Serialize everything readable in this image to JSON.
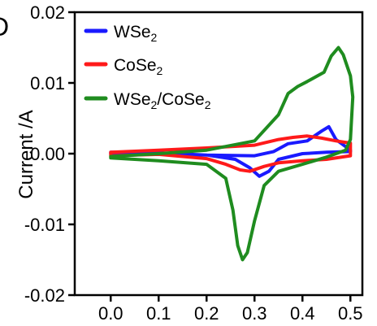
{
  "panel_label": "D",
  "chart_data": {
    "type": "line",
    "xlabel": "",
    "ylabel": "Current /A",
    "xlim": [
      -0.075,
      0.525
    ],
    "ylim": [
      -0.02,
      0.02
    ],
    "x_ticks": [
      "0.0",
      "0.1",
      "0.2",
      "0.3",
      "0.4",
      "0.5"
    ],
    "x_tick_values": [
      0.0,
      0.1,
      0.2,
      0.3,
      0.4,
      0.5
    ],
    "y_ticks": [
      "-0.02",
      "-0.01",
      "0.00",
      "0.01",
      "0.02"
    ],
    "y_tick_values": [
      -0.02,
      -0.01,
      0.0,
      0.01,
      0.02
    ],
    "grid": false,
    "legend_position": "top-left",
    "series": [
      {
        "name": "WSe",
        "name_sub": "2",
        "color": "#1a1aff",
        "x": [
          0.0,
          0.1,
          0.2,
          0.26,
          0.29,
          0.31,
          0.33,
          0.35,
          0.4,
          0.45,
          0.5,
          0.5,
          0.47,
          0.455,
          0.44,
          0.41,
          0.37,
          0.34,
          0.3,
          0.2,
          0.1,
          0.0,
          0.0
        ],
        "y": [
          0.0002,
          0.0001,
          -0.0002,
          -0.0008,
          -0.002,
          -0.0032,
          -0.0025,
          -0.0008,
          0.0,
          0.0002,
          0.0003,
          0.0005,
          0.002,
          0.0038,
          0.0032,
          0.0018,
          0.0014,
          0.0003,
          -0.0003,
          -0.0002,
          -0.0001,
          0.0,
          0.0002
        ]
      },
      {
        "name": "CoSe",
        "name_sub": "2",
        "color": "#ff1a1a",
        "x": [
          0.0,
          0.1,
          0.2,
          0.24,
          0.27,
          0.29,
          0.32,
          0.35,
          0.4,
          0.45,
          0.5,
          0.5,
          0.47,
          0.44,
          0.41,
          0.38,
          0.35,
          0.3,
          0.2,
          0.1,
          0.0,
          0.0
        ],
        "y": [
          -0.0003,
          -0.0001,
          -0.0007,
          -0.0015,
          -0.0023,
          -0.0025,
          -0.0018,
          -0.0013,
          -0.001,
          -0.0008,
          -0.0003,
          0.0015,
          0.0018,
          0.0022,
          0.0025,
          0.0023,
          0.002,
          0.0012,
          0.0008,
          0.0005,
          0.0002,
          -0.0003
        ]
      },
      {
        "name": "WSe",
        "name_sub": "2",
        "name_suffix": "/CoSe",
        "name_suffix_sub": "2",
        "color": "#1f8c1f",
        "x": [
          0.0,
          0.1,
          0.2,
          0.24,
          0.255,
          0.265,
          0.275,
          0.285,
          0.3,
          0.32,
          0.35,
          0.4,
          0.45,
          0.49,
          0.5,
          0.505,
          0.5,
          0.485,
          0.475,
          0.46,
          0.445,
          0.41,
          0.39,
          0.37,
          0.35,
          0.3,
          0.2,
          0.1,
          0.0,
          0.0
        ],
        "y": [
          -0.0006,
          -0.001,
          -0.0015,
          -0.0035,
          -0.008,
          -0.013,
          -0.015,
          -0.014,
          -0.0095,
          -0.0045,
          -0.0025,
          -0.0015,
          -0.0005,
          0.0005,
          0.002,
          0.008,
          0.011,
          0.014,
          0.015,
          0.0138,
          0.0115,
          0.0102,
          0.0095,
          0.0085,
          0.0055,
          0.0018,
          0.0005,
          0.0,
          -0.0004,
          -0.0006
        ]
      }
    ]
  }
}
